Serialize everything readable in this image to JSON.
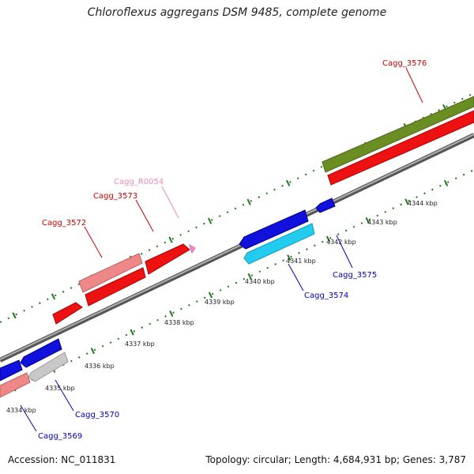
{
  "title": "Chloroflexus aggregans DSM 9485, complete genome",
  "footer": {
    "accession": "Accession: NC_011831",
    "summary": "Topology: circular; Length: 4,684,931 bp; Genes: 3,787"
  },
  "colors": {
    "backbone": "#7a7a7a",
    "tick": "#1f7a1f",
    "cds_red": "#ee1111",
    "cds_pink": "#ee8888",
    "rna_pink": "#ff88cc",
    "cds_blue": "#1111dd",
    "cds_cyan": "#22ccee",
    "cds_grey": "#c8c8c8",
    "cds_olive": "#6b8e23",
    "label_red": "#cc0000",
    "label_blue": "#0000bb",
    "label_pink": "#ee88bb"
  },
  "kbp_labels": [
    "4334 kbp",
    "4335 kbp",
    "4336 kbp",
    "4337 kbp",
    "4338 kbp",
    "4339 kbp",
    "4340 kbp",
    "4341 kbp",
    "4342 kbp",
    "4343 kbp",
    "4344 kbp"
  ],
  "gene_labels": [
    "Cagg_3576",
    "Cagg_R0054",
    "Cagg_3573",
    "Cagg_3572",
    "Cagg_3575",
    "Cagg_3574",
    "Cagg_3570",
    "Cagg_3569"
  ]
}
